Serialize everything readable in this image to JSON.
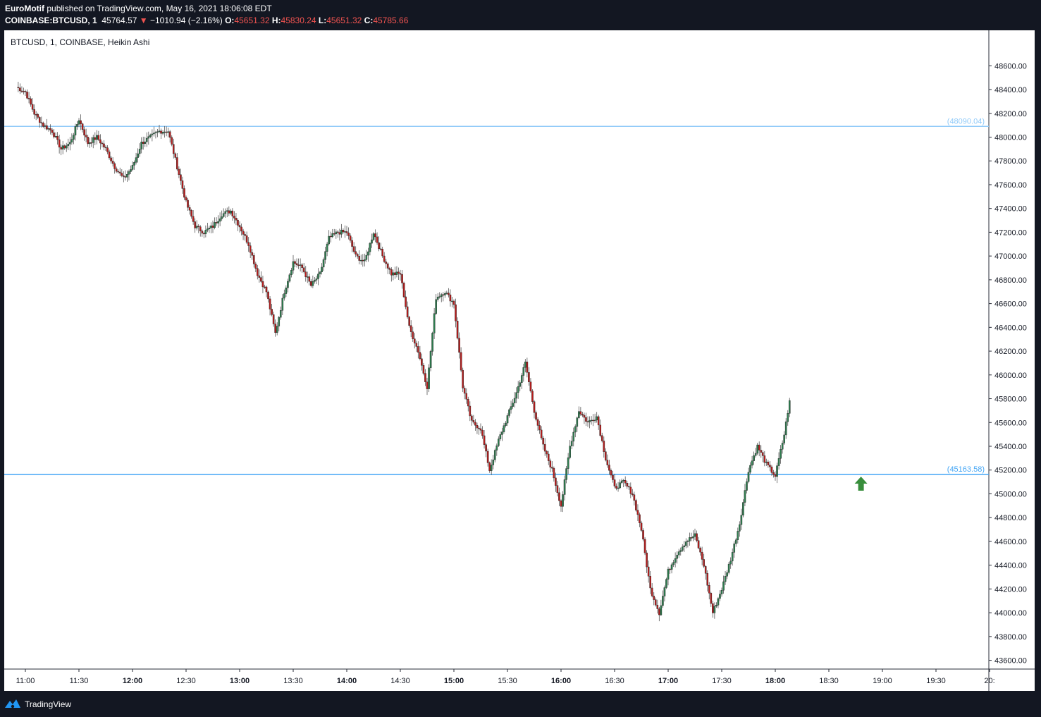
{
  "header": {
    "publisher": "EuroMotif",
    "published_text": "published on TradingView.com, May 16, 2021 18:06:08 EDT",
    "symbol_line": "COINBASE:BTCUSD, 1",
    "last_price": "45764.57",
    "change": "−1010.94 (−2.16%)",
    "open_label": "O:",
    "open": "45651.32",
    "high_label": "H:",
    "high": "45830.24",
    "low_label": "L:",
    "low": "45651.32",
    "close_label": "C:",
    "close": "45785.66"
  },
  "chart_title": "BTCUSD, 1, COINBASE, Heikin Ashi",
  "footer": {
    "brand": "TradingView"
  },
  "colors": {
    "up": "#26a69a",
    "up_body": "#2e7d4f",
    "down": "#b71c1c",
    "line_upper": "#90caf9",
    "line_lower": "#42a5f5",
    "arrow": "#388e3c",
    "axis_text": "#131722"
  },
  "chart_data": {
    "type": "candlestick",
    "style": "Heikin Ashi",
    "y_axis": {
      "min": 43550,
      "max": 48750,
      "ticks": [
        "48600.00",
        "48400.00",
        "48200.00",
        "48000.00",
        "47800.00",
        "47600.00",
        "47400.00",
        "47200.00",
        "47000.00",
        "46800.00",
        "46600.00",
        "46400.00",
        "46200.00",
        "46000.00",
        "45800.00",
        "45600.00",
        "45400.00",
        "45200.00",
        "45000.00",
        "44800.00",
        "44600.00",
        "44400.00",
        "44200.00",
        "44000.00",
        "43800.00",
        "43600.00"
      ]
    },
    "x_axis": {
      "ticks": [
        "11:00",
        "11:30",
        "12:00",
        "12:30",
        "13:00",
        "13:30",
        "14:00",
        "14:30",
        "15:00",
        "15:30",
        "16:00",
        "16:30",
        "17:00",
        "17:30",
        "18:00",
        "18:30",
        "19:00",
        "19:30",
        "20:"
      ]
    },
    "horizontal_lines": [
      {
        "name": "upper-level",
        "value": 48090.04,
        "label": "(48090.04)"
      },
      {
        "name": "lower-level",
        "value": 45163.58,
        "label": "(45163.58)"
      }
    ],
    "arrow_annotation": {
      "direction": "up",
      "time": "18:48",
      "price": 45080
    },
    "price_path": [
      [
        "10:55",
        48420
      ],
      [
        "11:00",
        48380
      ],
      [
        "11:05",
        48200
      ],
      [
        "11:10",
        48100
      ],
      [
        "11:15",
        48050
      ],
      [
        "11:20",
        47900
      ],
      [
        "11:25",
        47950
      ],
      [
        "11:30",
        48150
      ],
      [
        "11:35",
        47950
      ],
      [
        "11:40",
        48000
      ],
      [
        "11:45",
        47900
      ],
      [
        "11:50",
        47750
      ],
      [
        "11:55",
        47650
      ],
      [
        "12:00",
        47750
      ],
      [
        "12:05",
        47950
      ],
      [
        "12:10",
        48000
      ],
      [
        "12:15",
        48050
      ],
      [
        "12:20",
        48050
      ],
      [
        "12:25",
        47750
      ],
      [
        "12:30",
        47450
      ],
      [
        "12:35",
        47250
      ],
      [
        "12:40",
        47200
      ],
      [
        "12:45",
        47250
      ],
      [
        "12:50",
        47350
      ],
      [
        "12:55",
        47380
      ],
      [
        "13:00",
        47250
      ],
      [
        "13:05",
        47100
      ],
      [
        "13:10",
        46850
      ],
      [
        "13:15",
        46700
      ],
      [
        "13:20",
        46350
      ],
      [
        "13:25",
        46700
      ],
      [
        "13:30",
        46950
      ],
      [
        "13:35",
        46900
      ],
      [
        "13:40",
        46750
      ],
      [
        "13:45",
        46850
      ],
      [
        "13:50",
        47150
      ],
      [
        "13:55",
        47200
      ],
      [
        "14:00",
        47200
      ],
      [
        "14:05",
        47000
      ],
      [
        "14:10",
        46950
      ],
      [
        "14:15",
        47200
      ],
      [
        "14:20",
        47000
      ],
      [
        "14:25",
        46850
      ],
      [
        "14:30",
        46850
      ],
      [
        "14:35",
        46400
      ],
      [
        "14:40",
        46200
      ],
      [
        "14:45",
        45900
      ],
      [
        "14:50",
        46650
      ],
      [
        "14:55",
        46700
      ],
      [
        "15:00",
        46600
      ],
      [
        "15:05",
        45900
      ],
      [
        "15:10",
        45600
      ],
      [
        "15:15",
        45550
      ],
      [
        "15:20",
        45200
      ],
      [
        "15:25",
        45450
      ],
      [
        "15:30",
        45650
      ],
      [
        "15:35",
        45850
      ],
      [
        "15:40",
        46100
      ],
      [
        "15:45",
        45700
      ],
      [
        "15:50",
        45400
      ],
      [
        "15:55",
        45200
      ],
      [
        "16:00",
        44900
      ],
      [
        "16:05",
        45400
      ],
      [
        "16:10",
        45700
      ],
      [
        "16:15",
        45600
      ],
      [
        "16:20",
        45650
      ],
      [
        "16:25",
        45300
      ],
      [
        "16:30",
        45050
      ],
      [
        "16:35",
        45100
      ],
      [
        "16:40",
        45000
      ],
      [
        "16:45",
        44700
      ],
      [
        "16:50",
        44200
      ],
      [
        "16:55",
        44000
      ],
      [
        "17:00",
        44350
      ],
      [
        "17:05",
        44500
      ],
      [
        "17:10",
        44600
      ],
      [
        "17:15",
        44650
      ],
      [
        "17:20",
        44400
      ],
      [
        "17:25",
        44000
      ],
      [
        "17:30",
        44200
      ],
      [
        "17:35",
        44450
      ],
      [
        "17:40",
        44750
      ],
      [
        "17:45",
        45200
      ],
      [
        "17:50",
        45400
      ],
      [
        "17:55",
        45250
      ],
      [
        "18:00",
        45150
      ],
      [
        "18:05",
        45500
      ],
      [
        "18:08",
        45785
      ]
    ]
  }
}
